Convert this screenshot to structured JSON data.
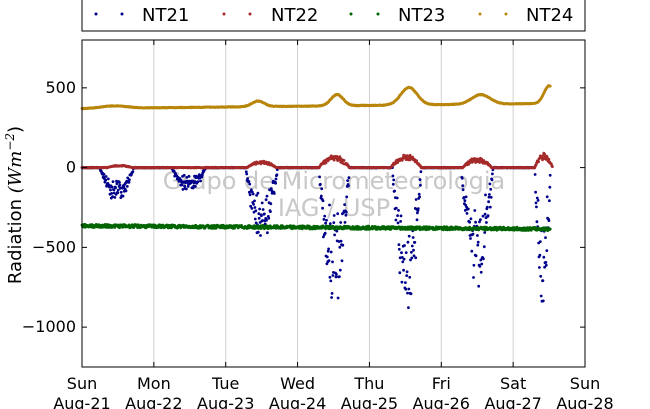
{
  "chart_data": {
    "type": "scatter",
    "title": "",
    "xlabel": "",
    "ylabel": "Radiation",
    "ylabel_unit": "(Wm",
    "ylabel_exponent": "−2",
    "ylabel_close": ")",
    "watermark_line1": "Grupo de Micrometeorologia",
    "watermark_line2": "IAG / USP",
    "xlim_days": [
      0,
      7
    ],
    "ylim": [
      -1250,
      800
    ],
    "grid": true,
    "legend_position": "top",
    "x_ticks": [
      {
        "day": 0,
        "weekday": "Sun",
        "date": "Aug-21"
      },
      {
        "day": 1,
        "weekday": "Mon",
        "date": "Aug-22"
      },
      {
        "day": 2,
        "weekday": "Tue",
        "date": "Aug-23"
      },
      {
        "day": 3,
        "weekday": "Wed",
        "date": "Aug-24"
      },
      {
        "day": 4,
        "weekday": "Thu",
        "date": "Aug-25"
      },
      {
        "day": 5,
        "weekday": "Fri",
        "date": "Aug-26"
      },
      {
        "day": 6,
        "weekday": "Sat",
        "date": "Aug-27"
      },
      {
        "day": 7,
        "weekday": "Sun",
        "date": "Aug-28"
      }
    ],
    "y_ticks": [
      {
        "value": 500,
        "label": "500"
      },
      {
        "value": 0,
        "label": "0"
      },
      {
        "value": -500,
        "label": "−500"
      },
      {
        "value": -1000,
        "label": "−1000"
      }
    ],
    "series": [
      {
        "name": "NT21",
        "color": "#00008b",
        "baseline": 0,
        "events": [
          {
            "start": 0.25,
            "end": 0.72,
            "peak": -200
          },
          {
            "start": 1.25,
            "end": 1.72,
            "peak": -150
          },
          {
            "start": 2.28,
            "end": 2.72,
            "peak": -450
          },
          {
            "start": 3.3,
            "end": 3.72,
            "peak": -820
          },
          {
            "start": 4.32,
            "end": 4.72,
            "peak": -870
          },
          {
            "start": 5.28,
            "end": 5.72,
            "peak": -730
          },
          {
            "start": 6.3,
            "end": 6.52,
            "peak": -830
          }
        ],
        "x_end": 6.52
      },
      {
        "name": "NT22",
        "color": "#a52a2a",
        "baseline": 0,
        "events": [
          {
            "start": 0.35,
            "end": 0.7,
            "peak": 15
          },
          {
            "start": 2.3,
            "end": 2.7,
            "peak": 40
          },
          {
            "start": 3.3,
            "end": 3.72,
            "peak": 75
          },
          {
            "start": 4.3,
            "end": 4.72,
            "peak": 80
          },
          {
            "start": 5.3,
            "end": 5.7,
            "peak": 60
          },
          {
            "start": 6.3,
            "end": 6.55,
            "peak": 85
          }
        ],
        "x_end": 6.55
      },
      {
        "name": "NT23",
        "color": "#006400",
        "baseline": -365,
        "drift": -20,
        "noise": 10,
        "x_end": 6.52
      },
      {
        "name": "NT24",
        "color": "#b8860b",
        "baseline": 370,
        "bumps": [
          {
            "center": 0.45,
            "height": 15,
            "width": 0.25
          },
          {
            "center": 2.45,
            "height": 35,
            "width": 0.12
          },
          {
            "center": 3.55,
            "height": 70,
            "width": 0.12
          },
          {
            "center": 4.55,
            "height": 110,
            "width": 0.16
          },
          {
            "center": 5.55,
            "height": 60,
            "width": 0.18
          },
          {
            "center": 6.5,
            "height": 110,
            "width": 0.1
          }
        ],
        "x_end": 6.52
      }
    ]
  }
}
